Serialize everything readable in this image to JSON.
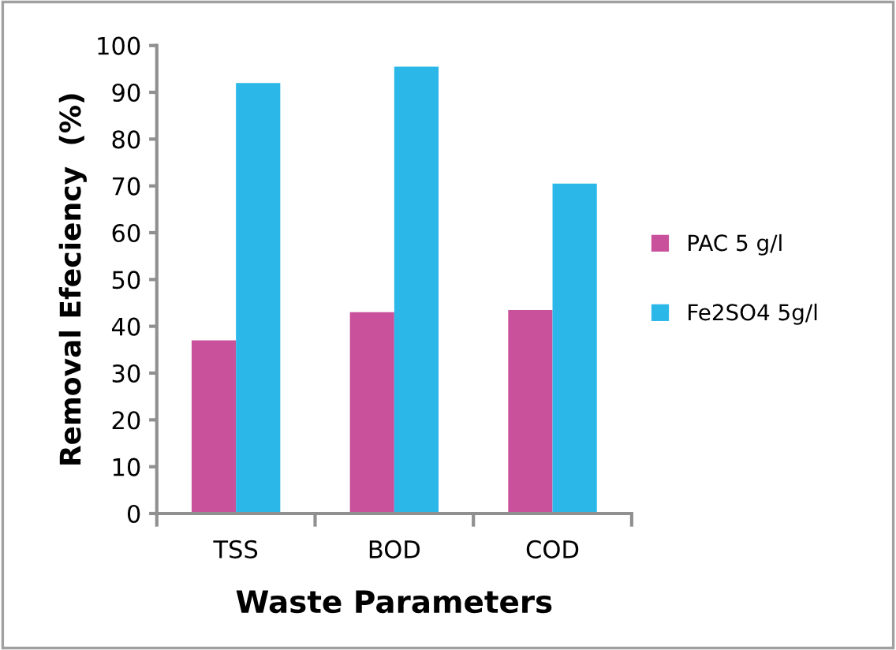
{
  "chart_data": {
    "type": "bar",
    "xlabel": "Waste Parameters",
    "ylabel": "Removal Efeciency  (%)",
    "categories": [
      "TSS",
      "BOD",
      "COD"
    ],
    "series": [
      {
        "name": "PAC 5 g/l",
        "color": "#c9519b",
        "values": [
          37,
          43,
          43.5
        ]
      },
      {
        "name": "Fe2SO4 5g/l",
        "color": "#2bb8e8",
        "values": [
          92,
          95.5,
          70.5
        ]
      }
    ],
    "ylim": [
      0,
      100
    ],
    "yticks": [
      0,
      10,
      20,
      30,
      40,
      50,
      60,
      70,
      80,
      90,
      100
    ],
    "grid": false,
    "legend": "right"
  }
}
